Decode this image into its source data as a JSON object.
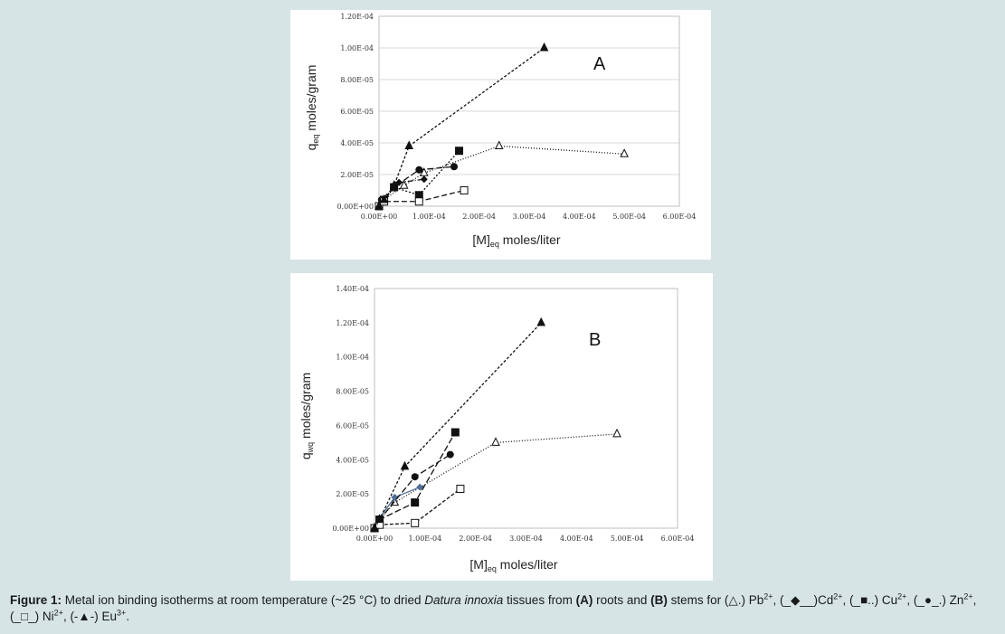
{
  "chart_data": [
    {
      "type": "line",
      "panel_label": "A",
      "ylabel_main": "q",
      "ylabel_sub": "eq",
      "ylabel_rest": " moles/gram",
      "xlabel_main": "[M]",
      "xlabel_sub": "eq",
      "xlabel_rest": " moles/liter",
      "xlim": [
        0,
        0.0006
      ],
      "ylim": [
        0,
        0.00012
      ],
      "x_ticks": [
        "0.00E+00",
        "1.00E-04",
        "2.00E-04",
        "3.00E-04",
        "4.00E-04",
        "5.00E-04",
        "6.00E-04"
      ],
      "y_ticks": [
        "0.00E+00",
        "2.00E-05",
        "4.00E-05",
        "6.00E-05",
        "8.00E-05",
        "1.00E-04",
        "1.20E-04"
      ],
      "grid": true,
      "legend": "none",
      "series": [
        {
          "marker": "triangle-open",
          "dash": "1,2",
          "x": [
            0,
            5e-06,
            5e-05,
            9e-05,
            0.00024,
            0.00049
          ],
          "y": [
            0,
            3e-06,
            1.3e-05,
            2.1e-05,
            3.8e-05,
            3.3e-05
          ]
        },
        {
          "marker": "diamond",
          "dash": "6,2,1,2",
          "x": [
            0,
            1e-05,
            4e-05,
            9e-05
          ],
          "y": [
            0,
            4e-06,
            1.5e-05,
            1.7e-05
          ]
        },
        {
          "marker": "square",
          "dash": "2,2",
          "x": [
            0,
            1e-05,
            3e-05,
            8e-05,
            0.00016
          ],
          "y": [
            0,
            4e-06,
            1.2e-05,
            7e-06,
            3.5e-05
          ]
        },
        {
          "marker": "circle",
          "dash": "7,3",
          "x": [
            0,
            5e-06,
            3e-05,
            8e-05,
            0.00015
          ],
          "y": [
            0,
            4e-06,
            1.2e-05,
            2.3e-05,
            2.5e-05
          ]
        },
        {
          "marker": "square-open",
          "dash": "6,3",
          "x": [
            0,
            1e-05,
            8e-05,
            0.00017
          ],
          "y": [
            0,
            3e-06,
            3e-06,
            1e-05
          ]
        },
        {
          "marker": "triangle",
          "dash": "3,2",
          "x": [
            0,
            1e-05,
            3e-05,
            6e-05,
            0.00033
          ],
          "y": [
            0,
            4e-06,
            1.3e-05,
            3.8e-05,
            0.0001
          ]
        }
      ]
    },
    {
      "type": "line",
      "panel_label": "B",
      "ylabel_main": "q",
      "ylabel_sub": "wq",
      "ylabel_rest": " moles/gram",
      "xlabel_main": "[M]",
      "xlabel_sub": "eq",
      "xlabel_rest": " moles/liter",
      "xlim": [
        0,
        0.0006
      ],
      "ylim": [
        0,
        0.00014
      ],
      "x_ticks": [
        "0.00E+00",
        "1.00E-04",
        "2.00E-04",
        "3.00E-04",
        "4.00E-04",
        "5.00E-04",
        "6.00E-04"
      ],
      "y_ticks": [
        "0.00E+00",
        "2.00E-05",
        "4.00E-05",
        "6.00E-05",
        "8.00E-05",
        "1.00E-04",
        "1.20E-04",
        "1.40E-04"
      ],
      "grid": false,
      "legend": "none",
      "series": [
        {
          "marker": "triangle-open",
          "dash": "1,2",
          "x": [
            0,
            1e-05,
            4e-05,
            0.00024,
            0.00048
          ],
          "y": [
            0,
            5e-06,
            1.5e-05,
            5e-05,
            5.5e-05
          ]
        },
        {
          "marker": "diamond",
          "dash": "0",
          "color": "#4f6f96",
          "x": [
            0,
            1e-05,
            4e-05,
            9e-05
          ],
          "y": [
            0,
            6e-06,
            1.8e-05,
            2.4e-05
          ]
        },
        {
          "marker": "square",
          "dash": "7,3",
          "x": [
            0,
            1e-05,
            8e-05,
            0.00016
          ],
          "y": [
            0,
            5e-06,
            1.5e-05,
            5.6e-05
          ]
        },
        {
          "marker": "circle",
          "dash": "7,3",
          "x": [
            0,
            1e-05,
            8e-05,
            0.00015
          ],
          "y": [
            0,
            5e-06,
            3e-05,
            4.3e-05
          ]
        },
        {
          "marker": "square-open",
          "dash": "4,2",
          "x": [
            0,
            1e-05,
            8e-05,
            0.00017
          ],
          "y": [
            0,
            2e-06,
            3e-06,
            2.3e-05
          ]
        },
        {
          "marker": "triangle",
          "dash": "3,2",
          "x": [
            0,
            1e-05,
            6e-05,
            0.00033
          ],
          "y": [
            0,
            5e-06,
            3.6e-05,
            0.00012
          ]
        }
      ]
    }
  ],
  "caption": {
    "figure_label": "Figure 1:",
    "text_1": " Metal ion binding isotherms at room temperature (~25 °C) to dried ",
    "species": "Datura innoxia",
    "text_2": " tissues from ",
    "roots_label": "(A)",
    "text_3": " roots and ",
    "stems_label": "(B)",
    "text_4": " stems for (△.) Pb",
    "pb_charge": "2+",
    "text_5": ", (_◆__)Cd",
    "cd_charge": "2+",
    "text_6": ", (_■..) Cu",
    "cu_charge": "2+",
    "text_7": ", (_●_.) Zn",
    "zn_charge": "2+",
    "text_8": ", (_□_) Ni",
    "ni_charge": "2+",
    "text_9": ", (-▲-) Eu",
    "eu_charge": "3+",
    "text_10": "."
  }
}
